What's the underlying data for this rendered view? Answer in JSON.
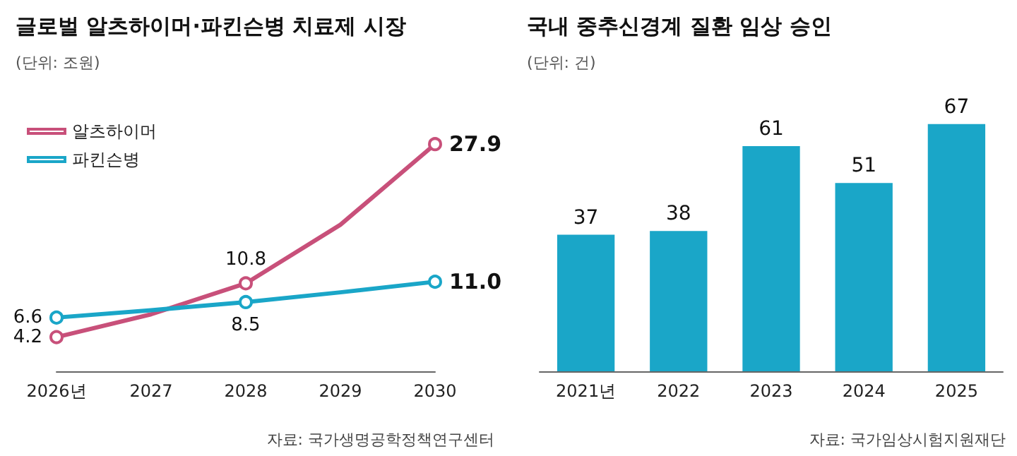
{
  "chart_data": [
    {
      "type": "line",
      "title": "글로벌 알츠하이머·파킨슨병 치료제 시장",
      "subtitle": "(단위: 조원)",
      "categories": [
        "2026년",
        "2027",
        "2028",
        "2029",
        "2030"
      ],
      "legend": "top left",
      "marker": "circle",
      "line_style": "solid",
      "grid": false,
      "series": [
        {
          "name": "알츠하이머",
          "color": "#c8507a",
          "values": [
            4.2,
            7.0,
            10.8,
            18.0,
            27.9
          ],
          "value_labels": [
            "4.2",
            null,
            "10.8",
            null,
            "27.9"
          ]
        },
        {
          "name": "파킨슨병",
          "color": "#1aa6c8",
          "values": [
            6.6,
            7.5,
            8.5,
            9.7,
            11.0
          ],
          "value_labels": [
            "6.6",
            null,
            "8.5",
            null,
            "11.0"
          ]
        }
      ],
      "annotations": [
        "자료: 국가생명공학정책연구센터"
      ]
    },
    {
      "type": "bar",
      "title": "국내 중추신경계 질환 임상 승인",
      "subtitle": "(단위: 건)",
      "categories": [
        "2021년",
        "2022",
        "2023",
        "2024",
        "2025"
      ],
      "values": [
        37,
        38,
        61,
        51,
        67
      ],
      "color": "#1aa6c8",
      "data_labels": true,
      "grid": false,
      "legend": false,
      "annotations": [
        "자료: 국가임상시험지원재단"
      ]
    }
  ]
}
